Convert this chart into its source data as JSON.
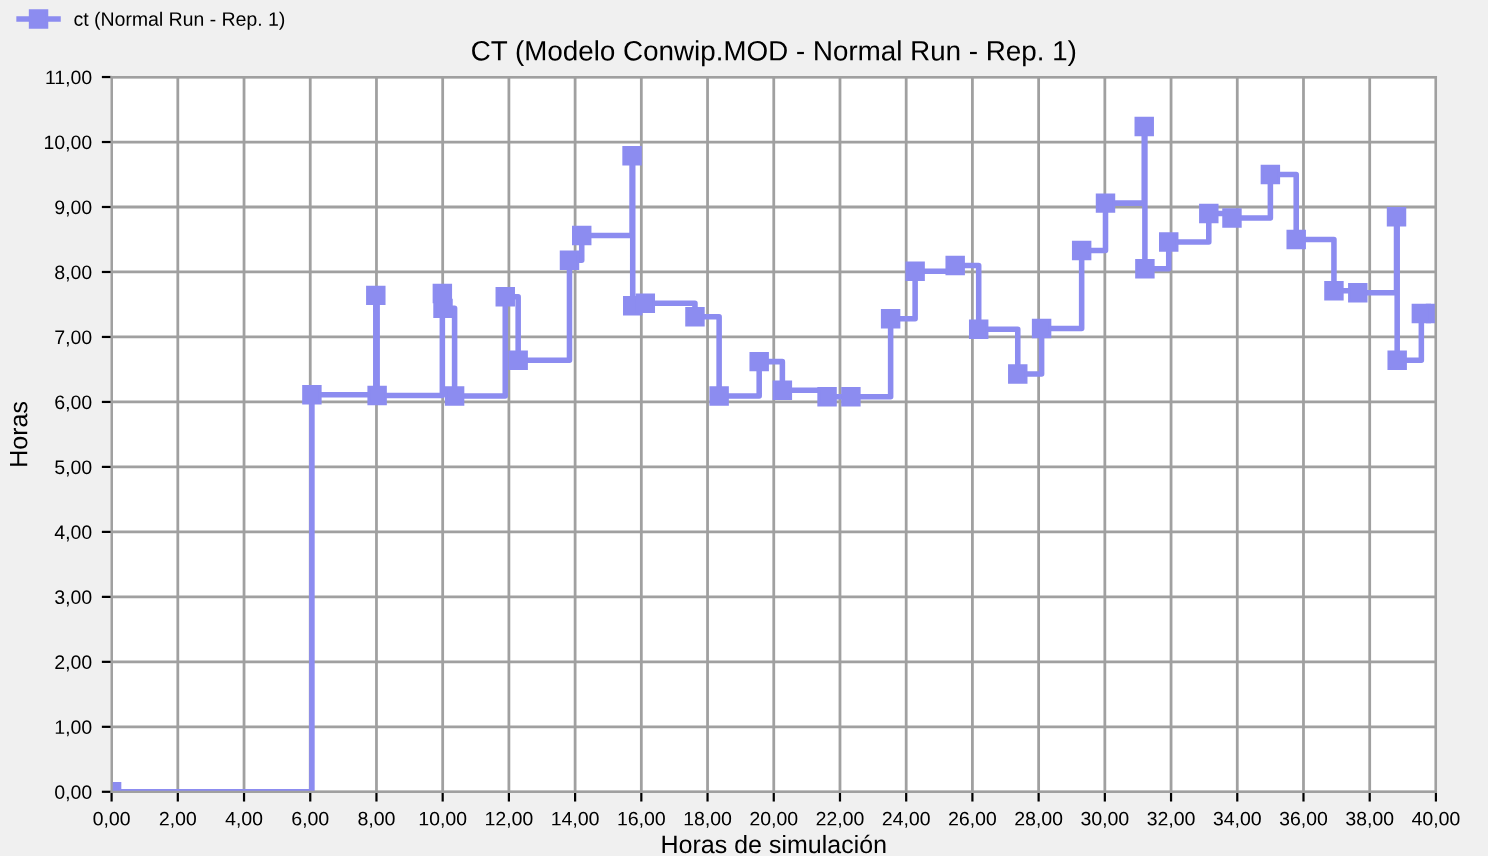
{
  "chart_data": {
    "type": "step",
    "title": "CT (Modelo Conwip.MOD - Normal Run - Rep. 1)",
    "xlabel": "Horas de simulación",
    "ylabel": "Horas",
    "series": [
      {
        "name": "ct (Normal Run - Rep. 1)",
        "color": "#8c8cf0",
        "x": [
          0,
          6.05,
          7.98,
          8.02,
          9.99,
          10.01,
          10.36,
          11.89,
          12.28,
          13.83,
          14.2,
          15.72,
          15.74,
          16.12,
          17.62,
          18.35,
          19.56,
          20.26,
          21.61,
          22.33,
          23.53,
          24.27,
          25.48,
          26.19,
          27.37,
          28.09,
          29.3,
          30.02,
          31.19,
          31.21,
          31.93,
          33.14,
          33.84,
          35.0,
          35.78,
          36.92,
          37.64,
          38.81,
          38.83,
          39.56,
          39.99
        ],
        "values": [
          0,
          6.11,
          7.64,
          6.1,
          7.67,
          7.44,
          6.09,
          7.62,
          6.64,
          8.18,
          8.56,
          9.79,
          7.48,
          7.52,
          7.31,
          6.09,
          6.62,
          6.18,
          6.08,
          6.08,
          7.28,
          8.01,
          8.1,
          7.12,
          6.43,
          7.13,
          8.33,
          9.06,
          10.24,
          8.05,
          8.46,
          8.9,
          8.83,
          9.5,
          8.5,
          7.71,
          7.68,
          8.85,
          6.64,
          7.36,
          7.36
        ]
      }
    ],
    "xlim": [
      0,
      40
    ],
    "ylim": [
      0,
      11
    ],
    "xticks": [
      {
        "value": 0,
        "label": "0,00"
      },
      {
        "value": 2,
        "label": "2,00"
      },
      {
        "value": 4,
        "label": "4,00"
      },
      {
        "value": 6,
        "label": "6,00"
      },
      {
        "value": 8,
        "label": "8,00"
      },
      {
        "value": 10,
        "label": "10,00"
      },
      {
        "value": 12,
        "label": "12,00"
      },
      {
        "value": 14,
        "label": "14,00"
      },
      {
        "value": 16,
        "label": "16,00"
      },
      {
        "value": 18,
        "label": "18,00"
      },
      {
        "value": 20,
        "label": "20,00"
      },
      {
        "value": 22,
        "label": "22,00"
      },
      {
        "value": 24,
        "label": "24,00"
      },
      {
        "value": 26,
        "label": "26,00"
      },
      {
        "value": 28,
        "label": "28,00"
      },
      {
        "value": 30,
        "label": "30,00"
      },
      {
        "value": 32,
        "label": "32,00"
      },
      {
        "value": 34,
        "label": "34,00"
      },
      {
        "value": 36,
        "label": "36,00"
      },
      {
        "value": 38,
        "label": "38,00"
      },
      {
        "value": 40,
        "label": "40,00"
      }
    ],
    "yticks": [
      {
        "value": 0,
        "label": "0,00"
      },
      {
        "value": 1,
        "label": "1,00"
      },
      {
        "value": 2,
        "label": "2,00"
      },
      {
        "value": 3,
        "label": "3,00"
      },
      {
        "value": 4,
        "label": "4,00"
      },
      {
        "value": 5,
        "label": "5,00"
      },
      {
        "value": 6,
        "label": "6,00"
      },
      {
        "value": 7,
        "label": "7,00"
      },
      {
        "value": 8,
        "label": "8,00"
      },
      {
        "value": 9,
        "label": "9,00"
      },
      {
        "value": 10,
        "label": "10,00"
      },
      {
        "value": 11,
        "label": "11,00"
      }
    ],
    "grid": true,
    "legend": "top left",
    "marker": "square",
    "line_style": "solid"
  }
}
